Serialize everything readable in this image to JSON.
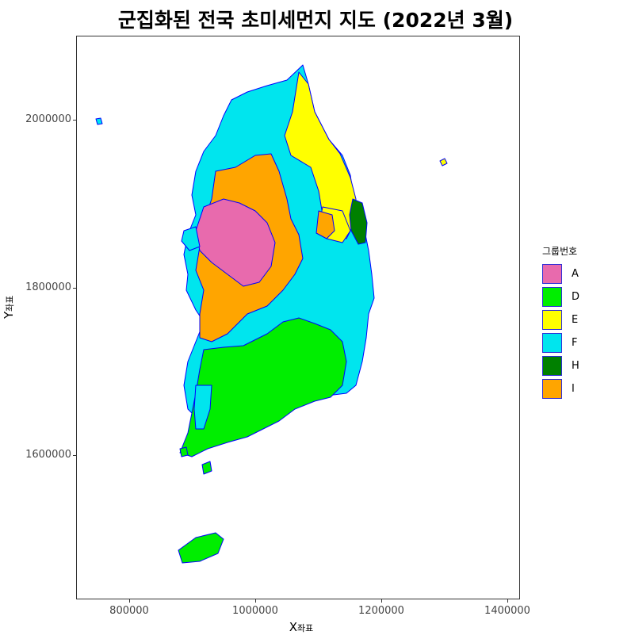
{
  "title": "군집화된 전국 초미세먼지 지도 (2022년 3월)",
  "axes": {
    "x_label": "X",
    "x_label_sub": "좌표",
    "y_label": "Y",
    "y_label_sub": "좌표",
    "x_ticks": [
      "800000",
      "1000000",
      "1200000",
      "1400000"
    ],
    "y_ticks": [
      "2000000",
      "1800000",
      "1600000"
    ]
  },
  "legend": {
    "title": "그룹번호",
    "items": [
      {
        "label": "A",
        "color": "#e86aad"
      },
      {
        "label": "D",
        "color": "#00ee00"
      },
      {
        "label": "E",
        "color": "#ffff00"
      },
      {
        "label": "F",
        "color": "#00e5ee"
      },
      {
        "label": "H",
        "color": "#008000"
      },
      {
        "label": "I",
        "color": "#ffa500"
      }
    ]
  },
  "colors": {
    "border": "#0000ff"
  }
}
